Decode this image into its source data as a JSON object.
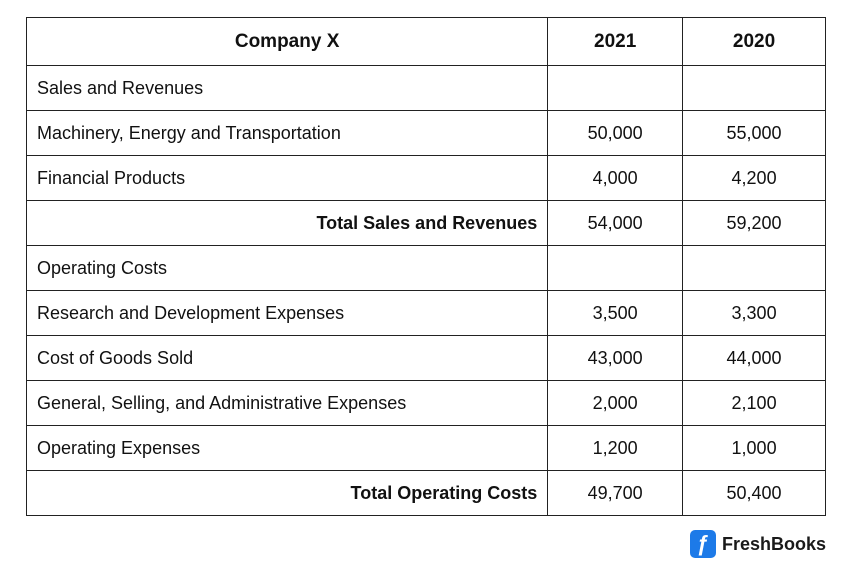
{
  "table": {
    "header": [
      "Company X",
      "2021",
      "2020"
    ],
    "sections": [
      {
        "title": "Sales and Revenues",
        "items": [
          {
            "label": "Machinery, Energy and Transportation",
            "values": [
              "50,000",
              "55,000"
            ]
          },
          {
            "label": "Financial Products",
            "values": [
              "4,000",
              "4,200"
            ]
          }
        ],
        "total": {
          "label": "Total Sales and Revenues",
          "values": [
            "54,000",
            "59,200"
          ]
        }
      },
      {
        "title": "Operating Costs",
        "items": [
          {
            "label": "Research and Development Expenses",
            "values": [
              "3,500",
              "3,300"
            ]
          },
          {
            "label": "Cost of Goods Sold",
            "values": [
              "43,000",
              "44,000"
            ]
          },
          {
            "label": "General, Selling, and Administrative Expenses",
            "values": [
              "2,000",
              "2,100"
            ]
          },
          {
            "label": "Operating Expenses",
            "values": [
              "1,200",
              "1,000"
            ]
          }
        ],
        "total": {
          "label": "Total Operating Costs",
          "values": [
            "49,700",
            "50,400"
          ]
        }
      }
    ]
  },
  "footer": {
    "logo": "FreshBooks"
  }
}
